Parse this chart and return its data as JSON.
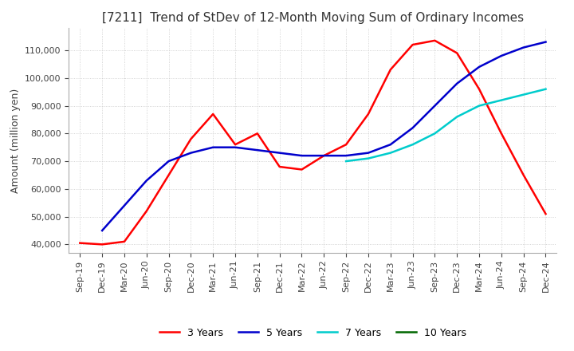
{
  "title": "[7211]  Trend of StDev of 12-Month Moving Sum of Ordinary Incomes",
  "ylabel": "Amount (million yen)",
  "background_color": "#ffffff",
  "grid_color": "#c8c8c8",
  "title_fontsize": 11,
  "label_fontsize": 9,
  "tick_fontsize": 8,
  "ylim": [
    37000,
    118000
  ],
  "yticks": [
    40000,
    50000,
    60000,
    70000,
    80000,
    90000,
    100000,
    110000
  ],
  "line_colors": {
    "3y": "#ff0000",
    "5y": "#0000cc",
    "7y": "#00cccc",
    "10y": "#006600"
  },
  "legend_labels": [
    "3 Years",
    "5 Years",
    "7 Years",
    "10 Years"
  ],
  "x_labels": [
    "Sep-19",
    "Dec-19",
    "Mar-20",
    "Jun-20",
    "Sep-20",
    "Dec-20",
    "Mar-21",
    "Jun-21",
    "Sep-21",
    "Dec-21",
    "Mar-22",
    "Jun-22",
    "Sep-22",
    "Dec-22",
    "Mar-23",
    "Jun-23",
    "Sep-23",
    "Dec-23",
    "Mar-24",
    "Jun-24",
    "Sep-24",
    "Dec-24"
  ],
  "series_3y": [
    40500,
    40000,
    41000,
    52000,
    65000,
    78000,
    87000,
    76000,
    80000,
    68000,
    67000,
    72000,
    76000,
    87000,
    103000,
    112000,
    113500,
    109000,
    96000,
    80000,
    65000,
    51000
  ],
  "series_5y": [
    null,
    45000,
    54000,
    63000,
    70000,
    73000,
    75000,
    75000,
    74000,
    73000,
    72000,
    72000,
    72000,
    73000,
    76000,
    82000,
    90000,
    98000,
    104000,
    108000,
    111000,
    113000
  ],
  "series_7y": [
    null,
    null,
    null,
    null,
    null,
    null,
    null,
    null,
    null,
    null,
    null,
    null,
    70000,
    71000,
    73000,
    76000,
    80000,
    86000,
    90000,
    92000,
    94000,
    96000
  ],
  "series_10y": []
}
